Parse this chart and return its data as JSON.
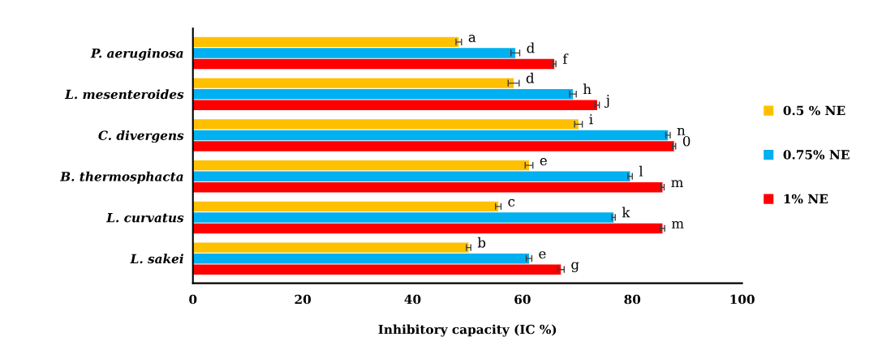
{
  "chart_data": {
    "type": "bar",
    "orientation": "horizontal",
    "xlabel": "Inhibitory capacity (IC %)",
    "categories": [
      "P. aeruginosa",
      "L. mesenteroides",
      "C. divergens",
      "B. thermosphacta",
      "L. curvatus",
      "L. sakei"
    ],
    "annotations": [
      "a",
      "d",
      "i",
      "e",
      "c",
      "b",
      "d",
      "h",
      "n",
      "l",
      "k",
      "e",
      "f",
      "j",
      "0",
      "m",
      "m",
      "g"
    ],
    "xlim": [
      0,
      100
    ],
    "xticks": [
      0,
      20,
      40,
      60,
      80,
      100
    ],
    "grid": false,
    "legend": "right",
    "series": [
      {
        "name": "0.5 % NE",
        "color": "#ffc000",
        "values": [
          48.4,
          58.4,
          70.2,
          61.2,
          55.6,
          50.2
        ],
        "errors": [
          0.5,
          1,
          0.7,
          0.7,
          0.5,
          0.4
        ]
      },
      {
        "name": "0.75% NE",
        "color": "#00b0f0",
        "values": [
          58.7,
          69.2,
          86.5,
          79.6,
          76.6,
          61.2
        ],
        "errors": [
          0.8,
          0.6,
          0.4,
          0.4,
          0.3,
          0.5
        ]
      },
      {
        "name": "1% NE",
        "color": "#ff0000",
        "values": [
          65.8,
          73.6,
          87.6,
          85.5,
          85.5,
          67.0
        ],
        "errors": [
          0.3,
          0.4,
          0.3,
          0.3,
          0.4,
          0.6
        ]
      }
    ]
  }
}
